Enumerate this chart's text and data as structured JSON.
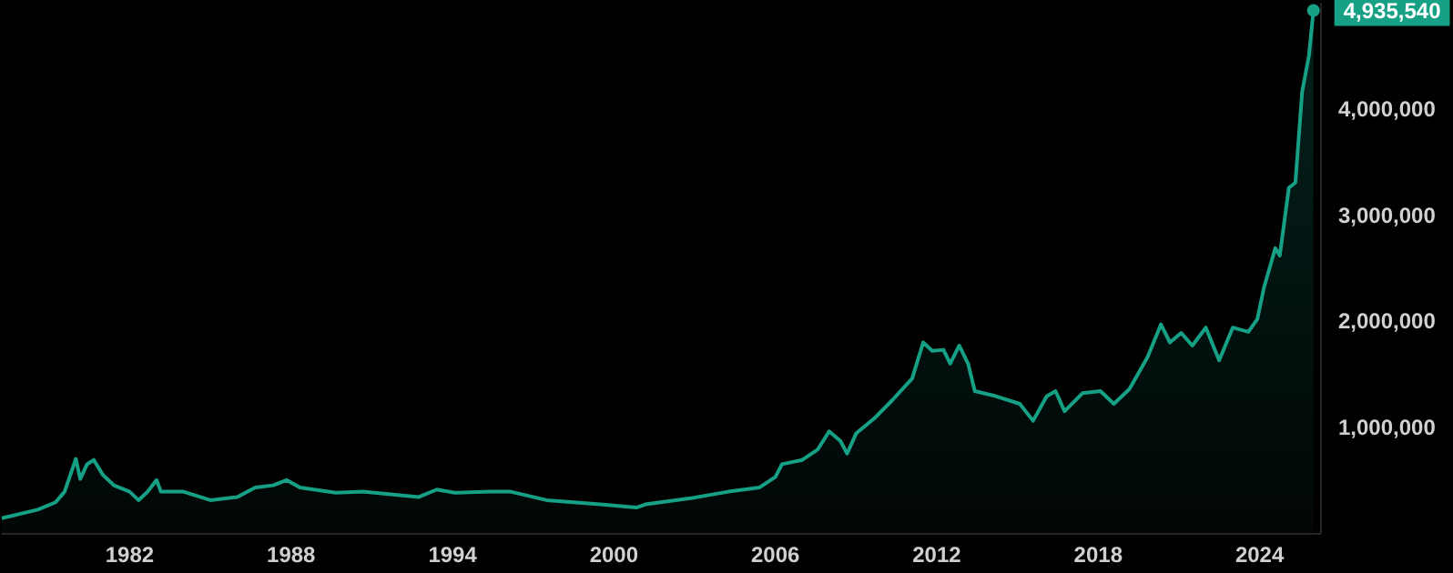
{
  "chart_data": {
    "type": "area",
    "x": [
      "1977-04",
      "1978-08",
      "1979-04",
      "1979-08",
      "1980-01",
      "1980-03",
      "1980-06",
      "1980-09",
      "1981-01",
      "1981-06",
      "1982-01",
      "1982-05",
      "1982-09",
      "1983-01",
      "1983-03",
      "1984-01",
      "1985-01",
      "1986-01",
      "1986-09",
      "1987-05",
      "1987-11",
      "1988-05",
      "1989-09",
      "1990-09",
      "1992-10",
      "1993-06",
      "1994-02",
      "1995-06",
      "1996-03",
      "1997-07",
      "1999-07",
      "2000-11",
      "2001-03",
      "2002-12",
      "2004-04",
      "2005-06",
      "2006-01",
      "2006-04",
      "2007-01",
      "2007-08",
      "2008-01",
      "2008-06",
      "2008-09",
      "2009-01",
      "2009-09",
      "2010-05",
      "2011-02",
      "2011-07",
      "2011-11",
      "2012-04",
      "2012-07",
      "2012-11",
      "2013-03",
      "2013-06",
      "2014-02",
      "2015-02",
      "2015-08",
      "2016-02",
      "2016-06",
      "2016-10",
      "2017-06",
      "2018-02",
      "2018-08",
      "2019-03",
      "2019-11",
      "2020-05",
      "2020-09",
      "2021-02",
      "2021-07",
      "2022-01",
      "2022-07",
      "2023-01",
      "2023-08",
      "2023-12",
      "2024-03",
      "2024-08",
      "2024-10",
      "2025-02",
      "2025-05",
      "2025-08",
      "2025-11",
      "2026-01"
    ],
    "series": [
      {
        "color": "#16a085",
        "values": [
          140000,
          220000,
          290000,
          390000,
          700000,
          510000,
          650000,
          690000,
          550000,
          450000,
          390000,
          310000,
          390000,
          500000,
          390000,
          390000,
          310000,
          340000,
          430000,
          450000,
          500000,
          430000,
          380000,
          390000,
          340000,
          410000,
          380000,
          390000,
          390000,
          310000,
          270000,
          240000,
          270000,
          330000,
          390000,
          430000,
          530000,
          650000,
          690000,
          790000,
          960000,
          870000,
          750000,
          940000,
          1080000,
          1250000,
          1460000,
          1800000,
          1720000,
          1730000,
          1600000,
          1770000,
          1600000,
          1340000,
          1300000,
          1220000,
          1060000,
          1290000,
          1340000,
          1150000,
          1320000,
          1340000,
          1220000,
          1360000,
          1660000,
          1970000,
          1800000,
          1890000,
          1770000,
          1940000,
          1630000,
          1940000,
          1900000,
          2020000,
          2320000,
          2690000,
          2620000,
          3260000,
          3310000,
          4170000,
          4510000,
          4935540
        ],
        "value_labels": [
          null,
          null,
          null,
          null,
          null,
          null,
          null,
          null,
          null,
          null,
          null,
          null,
          null,
          null,
          null,
          null,
          null,
          null,
          null,
          null,
          null,
          null,
          null,
          null,
          null,
          null,
          null,
          null,
          null,
          null,
          null,
          null,
          null,
          null,
          null,
          null,
          null,
          null,
          null,
          null,
          null,
          null,
          null,
          null,
          null,
          null,
          null,
          null,
          null,
          null,
          null,
          null,
          null,
          null,
          null,
          null,
          null,
          null,
          null,
          null,
          null,
          null,
          null,
          null,
          null,
          null,
          null,
          null,
          null,
          null,
          null,
          null,
          null,
          null,
          null,
          null,
          null,
          null,
          null,
          null,
          null,
          "4,935,540"
        ]
      }
    ],
    "xticks": [
      {
        "value": "1982-01",
        "label": "1982"
      },
      {
        "value": "1988-01",
        "label": "1988"
      },
      {
        "value": "1994-01",
        "label": "1994"
      },
      {
        "value": "2000-01",
        "label": "2000"
      },
      {
        "value": "2006-01",
        "label": "2006"
      },
      {
        "value": "2012-01",
        "label": "2012"
      },
      {
        "value": "2018-01",
        "label": "2018"
      },
      {
        "value": "2024-01",
        "label": "2024"
      }
    ],
    "xlim": [
      "1977-04",
      "2026-04"
    ],
    "ylim": [
      0,
      5000000
    ],
    "yticks": [
      {
        "value": 1000000,
        "label": "1,000,000"
      },
      {
        "value": 2000000,
        "label": "2,000,000"
      },
      {
        "value": 3000000,
        "label": "3,000,000"
      },
      {
        "value": 4000000,
        "label": "4,000,000"
      }
    ],
    "grid": false
  }
}
